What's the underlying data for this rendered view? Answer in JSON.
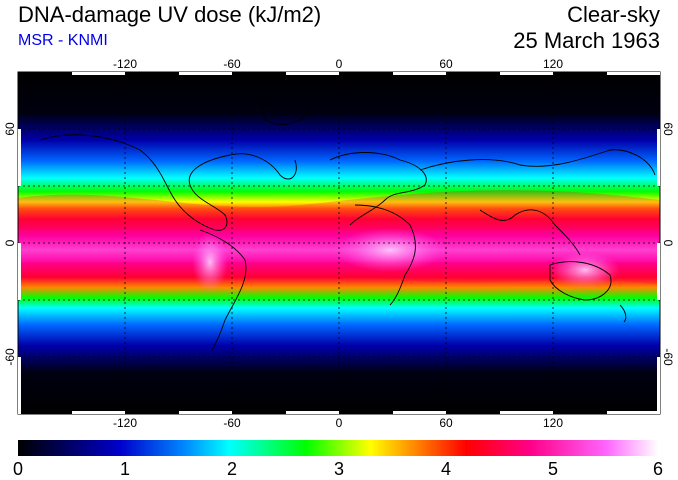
{
  "header": {
    "title": "DNA-damage UV dose (kJ/m2)",
    "source": "MSR - KNMI",
    "condition": "Clear-sky",
    "date": "25 March 1963"
  },
  "map": {
    "projection": "equirectangular",
    "lon_range": [
      -180,
      180
    ],
    "lat_range": [
      -90,
      90
    ],
    "lon_ticks": [
      -120,
      -60,
      0,
      60,
      120
    ],
    "lat_ticks": [
      -60,
      0,
      60
    ],
    "gridlines": "dashed",
    "coastlines": true
  },
  "colorbar": {
    "min": 0,
    "max": 6,
    "tick_labels": [
      "0",
      "1",
      "2",
      "3",
      "4",
      "5",
      "6"
    ],
    "colors": [
      "#000000",
      "#0000cc",
      "#0088ff",
      "#00ffff",
      "#00ff00",
      "#ffff00",
      "#ff8800",
      "#ff0000",
      "#ff0088",
      "#ff66ff",
      "#ffffff"
    ]
  }
}
